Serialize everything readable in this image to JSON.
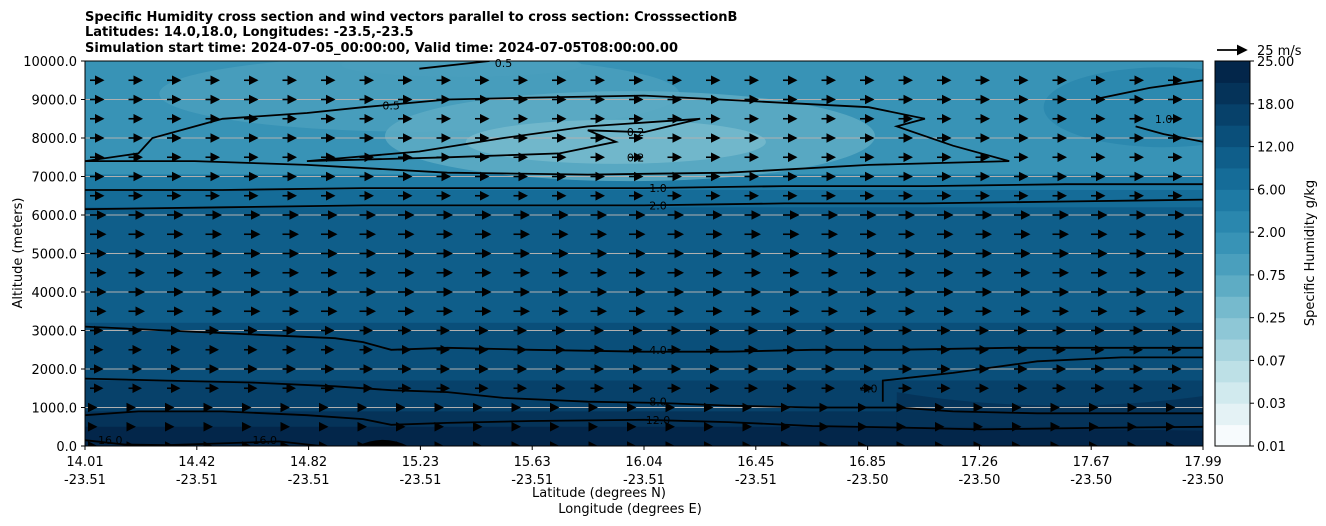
{
  "chart_data": {
    "type": "heatmap",
    "title_lines": [
      "Specific Humidity cross section and wind vectors parallel to cross section: CrosssectionB",
      "Latitudes: 14.0,18.0, Longitudes: -23.5,-23.5",
      "Simulation start time: 2024-07-05_00:00:00, Valid time: 2024-07-05T08:00:00.00"
    ],
    "ylabel": "Altitude (meters)",
    "xlabel_lines": [
      "Latitude (degrees N)",
      "Longitude (degrees E)"
    ],
    "ylim": [
      0,
      10000
    ],
    "yticks": [
      "0.0",
      "1000.0",
      "2000.0",
      "3000.0",
      "4000.0",
      "5000.0",
      "6000.0",
      "7000.0",
      "8000.0",
      "9000.0",
      "10000.0"
    ],
    "xticks": [
      {
        "lat": "14.01",
        "lon": "-23.51"
      },
      {
        "lat": "14.42",
        "lon": "-23.51"
      },
      {
        "lat": "14.82",
        "lon": "-23.51"
      },
      {
        "lat": "15.23",
        "lon": "-23.51"
      },
      {
        "lat": "15.63",
        "lon": "-23.51"
      },
      {
        "lat": "16.04",
        "lon": "-23.51"
      },
      {
        "lat": "16.45",
        "lon": "-23.51"
      },
      {
        "lat": "16.85",
        "lon": "-23.50"
      },
      {
        "lat": "17.26",
        "lon": "-23.50"
      },
      {
        "lat": "17.67",
        "lon": "-23.50"
      },
      {
        "lat": "17.99",
        "lon": "-23.50"
      }
    ],
    "colorbar": {
      "label": "Specific Humidity g/kg",
      "ticks": [
        "0.01",
        "0.03",
        "0.07",
        "0.25",
        "0.75",
        "2.00",
        "6.00",
        "12.00",
        "18.00",
        "25.00"
      ],
      "levels": 18
    },
    "contour_levels": [
      "16.0",
      "12.0",
      "8.0",
      "4.0",
      "2.0",
      "1.0",
      "0.5",
      "0.2"
    ],
    "contour_labels": [
      {
        "text": "16.0",
        "lat": 14.1,
        "alt": 150
      },
      {
        "text": "16.0",
        "lat": 14.65,
        "alt": 150
      },
      {
        "text": "12.0",
        "lat": 16.05,
        "alt": 680
      },
      {
        "text": "8.0",
        "lat": 16.05,
        "alt": 1150
      },
      {
        "text": "4.0",
        "lat": 16.05,
        "alt": 2500
      },
      {
        "text": "4.0",
        "lat": 16.8,
        "alt": 1500
      },
      {
        "text": "2.0",
        "lat": 16.05,
        "alt": 6250
      },
      {
        "text": "1.0",
        "lat": 16.05,
        "alt": 6700
      },
      {
        "text": "1.0",
        "lat": 17.85,
        "alt": 8500
      },
      {
        "text": "0.5",
        "lat": 15.1,
        "alt": 8850
      },
      {
        "text": "0.5",
        "lat": 15.5,
        "alt": 9950
      },
      {
        "text": "0.2",
        "lat": 15.97,
        "alt": 8150
      },
      {
        "text": "0.2",
        "lat": 15.97,
        "alt": 7500
      }
    ],
    "wind_key": {
      "label": "25 m/s"
    },
    "wind": {
      "direction": "parallel, toward increasing latitude",
      "grid_rows": 20,
      "grid_cols": 30
    }
  },
  "colors": {
    "colormap": [
      "#f7fbfd",
      "#e4f2f5",
      "#d1eaee",
      "#bde0e6",
      "#a7d4de",
      "#8ec7d6",
      "#76bacd",
      "#5eacc4",
      "#4a9fbd",
      "#3893b6",
      "#2a87ae",
      "#1e7aa4",
      "#156c98",
      "#0f5e8a",
      "#0a4f7a",
      "#07416a",
      "#053359",
      "#03264a"
    ]
  }
}
